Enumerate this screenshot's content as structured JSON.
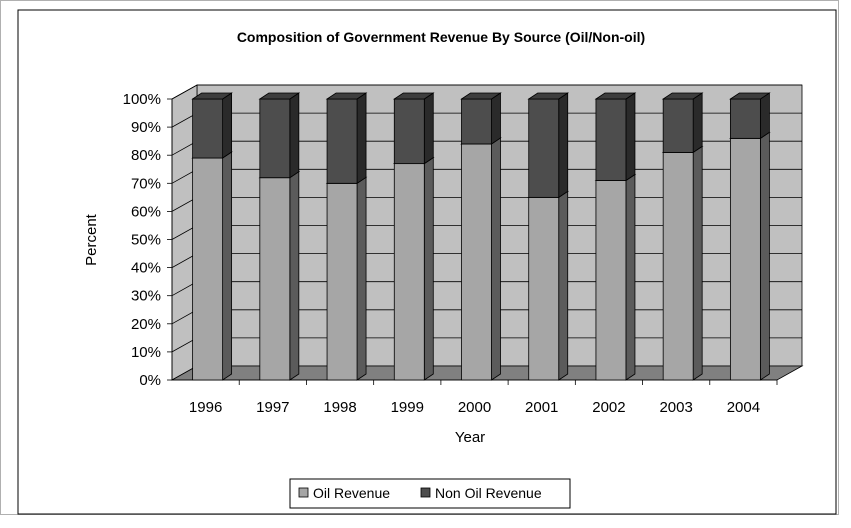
{
  "chart_data": {
    "type": "bar",
    "subtype": "stacked-100-percent-3d",
    "title": "Composition of Government Revenue By Source (Oil/Non-oil)",
    "xlabel": "Year",
    "ylabel": "Percent",
    "categories": [
      "1996",
      "1997",
      "1998",
      "1999",
      "2000",
      "2001",
      "2002",
      "2003",
      "2004"
    ],
    "series": [
      {
        "name": "Oil Revenue",
        "values": [
          79,
          72,
          70,
          77,
          84,
          65,
          71,
          81,
          86
        ],
        "color": "#a6a6a6"
      },
      {
        "name": "Non Oil Revenue",
        "values": [
          21,
          28,
          30,
          23,
          16,
          35,
          29,
          19,
          14
        ],
        "color": "#4d4d4d"
      }
    ],
    "yticks": [
      "0%",
      "10%",
      "20%",
      "30%",
      "40%",
      "50%",
      "60%",
      "70%",
      "80%",
      "90%",
      "100%"
    ],
    "ylim": [
      0,
      100
    ],
    "grid": true,
    "legend_position": "bottom",
    "colors": {
      "wall": "#c0c0c0",
      "floor": "#808080"
    }
  }
}
